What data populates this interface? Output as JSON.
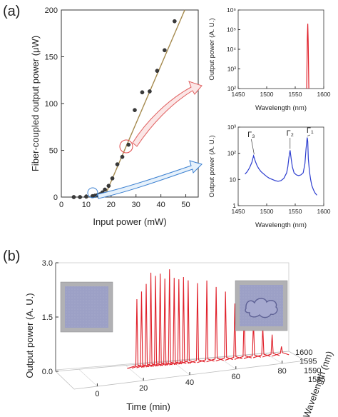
{
  "panel_a_label": "(a)",
  "panel_b_label": "(b)",
  "chart_data": [
    {
      "type": "scatter",
      "xlabel": "Input power (mW)",
      "ylabel": "Fiber-coupled output power (μW)",
      "xlim": [
        0,
        55
      ],
      "ylim": [
        0,
        200
      ],
      "xticks": [
        "0",
        "10",
        "20",
        "30",
        "40",
        "50"
      ],
      "yticks": [
        "0",
        "50",
        "100",
        "150",
        "200"
      ],
      "x": [
        5,
        7.5,
        10,
        12.5,
        13.5,
        14.5,
        15.5,
        16.5,
        17.5,
        19,
        20.5,
        22.5,
        24.5,
        27,
        29.5,
        32.5,
        35.5,
        38.5,
        41.5,
        45.5
      ],
      "y": [
        0,
        0,
        0.5,
        1,
        1.5,
        2,
        3,
        5,
        8,
        12,
        20,
        35,
        43,
        56,
        93,
        112,
        113,
        135,
        157,
        188
      ],
      "fit_line": {
        "x": [
          17.3,
          52
        ],
        "y": [
          0,
          215
        ]
      },
      "grid": false
    },
    {
      "type": "line",
      "xlabel": "Wavelength (nm)",
      "ylabel": "Output power (A. U.)",
      "xlim": [
        1450,
        1600
      ],
      "ylim_log": [
        100,
        1000000
      ],
      "log_y": true,
      "xticks": [
        "1450",
        "1500",
        "1550",
        "1600"
      ],
      "yticks": [
        "10²",
        "10³",
        "10⁴",
        "10⁵",
        "10⁶"
      ],
      "peak_wavelength": 1572,
      "peak_value": 200000,
      "color": "#e0202a"
    },
    {
      "type": "line",
      "xlabel": "Wavelength (nm)",
      "ylabel": "Output power (A. U.)",
      "xlim": [
        1450,
        1600
      ],
      "ylim_log": [
        1,
        1000
      ],
      "log_y": true,
      "xticks": [
        "1450",
        "1500",
        "1550",
        "1600"
      ],
      "yticks": [
        "1",
        "10",
        "10²",
        "10³"
      ],
      "x": [
        1462,
        1466,
        1470,
        1474,
        1477,
        1480,
        1483,
        1486,
        1490,
        1495,
        1500,
        1505,
        1510,
        1515,
        1520,
        1525,
        1530,
        1535,
        1537,
        1539,
        1541,
        1543,
        1545,
        1548,
        1552,
        1556,
        1560,
        1564,
        1567,
        1569,
        1571,
        1572,
        1573,
        1575,
        1577,
        1579,
        1582,
        1585,
        1588
      ],
      "y": [
        16,
        20,
        28,
        45,
        80,
        50,
        34,
        26,
        20,
        16,
        13,
        11,
        10,
        9,
        8.5,
        9,
        11,
        18,
        30,
        70,
        130,
        60,
        30,
        18,
        15,
        14,
        15,
        18,
        40,
        150,
        400,
        280,
        60,
        20,
        10,
        6,
        4,
        3,
        2.5
      ],
      "color": "#2b3ccf",
      "annotations": [
        {
          "label": "Γ₃",
          "x": 1478
        },
        {
          "label": "Γ₂",
          "x": 1541
        },
        {
          "label": "Γ₁",
          "x": 1571
        }
      ]
    },
    {
      "type": "line",
      "xlabel": "Time (min)",
      "ylabel": "Output power (A. U.)",
      "zlabel": "Wavelength (nm)",
      "xlim": [
        -10,
        90
      ],
      "zlim": [
        0.0,
        3.0
      ],
      "xticks": [
        "0",
        "20",
        "40",
        "60",
        "80"
      ],
      "zticks": [
        "0.0",
        "1.5",
        "3.0"
      ],
      "wavelength_ticks": [
        "1585",
        "1590",
        "1595",
        "1600"
      ],
      "spikes": {
        "time": [
          25,
          27,
          29,
          31,
          33,
          35,
          37,
          39,
          41,
          43,
          45,
          47,
          51,
          55,
          59,
          63,
          67,
          71,
          75,
          79,
          83,
          87
        ],
        "peak": [
          1.8,
          2.0,
          2.2,
          2.5,
          2.4,
          2.45,
          2.3,
          2.55,
          2.3,
          2.25,
          2.3,
          2.2,
          2.1,
          2.15,
          1.95,
          1.8,
          1.45,
          1.2,
          0.95,
          0.75,
          0.5,
          0.15
        ]
      },
      "color": "#e0202a"
    }
  ]
}
